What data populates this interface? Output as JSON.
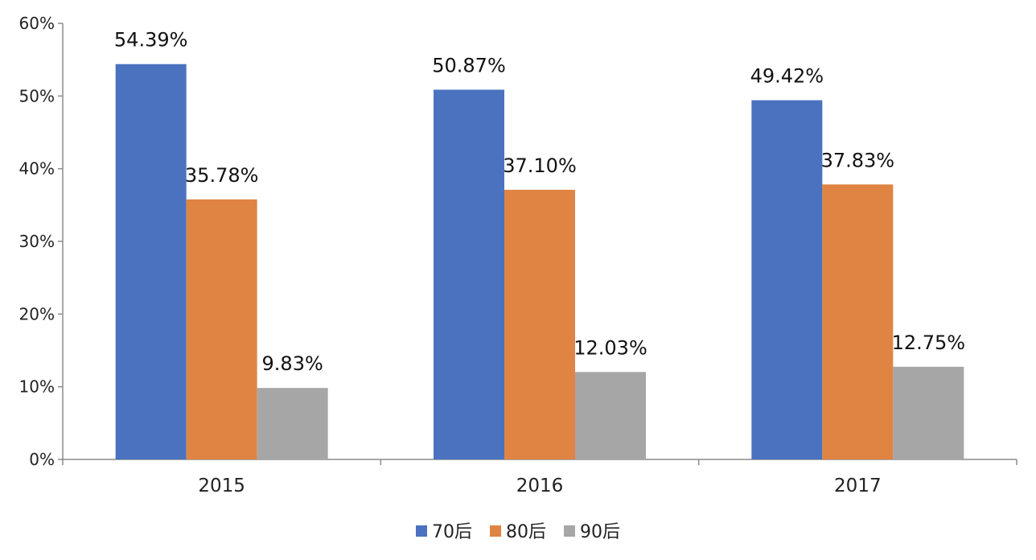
{
  "chart_data": {
    "type": "bar",
    "categories": [
      "2015",
      "2016",
      "2017"
    ],
    "series": [
      {
        "name": "70后",
        "values": [
          54.39,
          50.87,
          49.42
        ],
        "labels": [
          "54.39%",
          "50.87%",
          "49.42%"
        ],
        "color": "#4a72bf"
      },
      {
        "name": "80后",
        "values": [
          35.78,
          37.1,
          37.83
        ],
        "labels": [
          "35.78%",
          "37.10%",
          "37.83%"
        ],
        "color": "#e08444"
      },
      {
        "name": "90后",
        "values": [
          9.83,
          12.03,
          12.75
        ],
        "labels": [
          "9.83%",
          "12.03%",
          "12.75%"
        ],
        "color": "#a6a6a6"
      }
    ],
    "ylim": [
      0,
      60
    ],
    "yticks": [
      0,
      10,
      20,
      30,
      40,
      50,
      60
    ],
    "ytick_labels": [
      "0%",
      "10%",
      "20%",
      "30%",
      "40%",
      "50%",
      "60%"
    ],
    "title": "",
    "xlabel": "",
    "ylabel": "",
    "grid": false,
    "legend_position": "bottom-center"
  }
}
